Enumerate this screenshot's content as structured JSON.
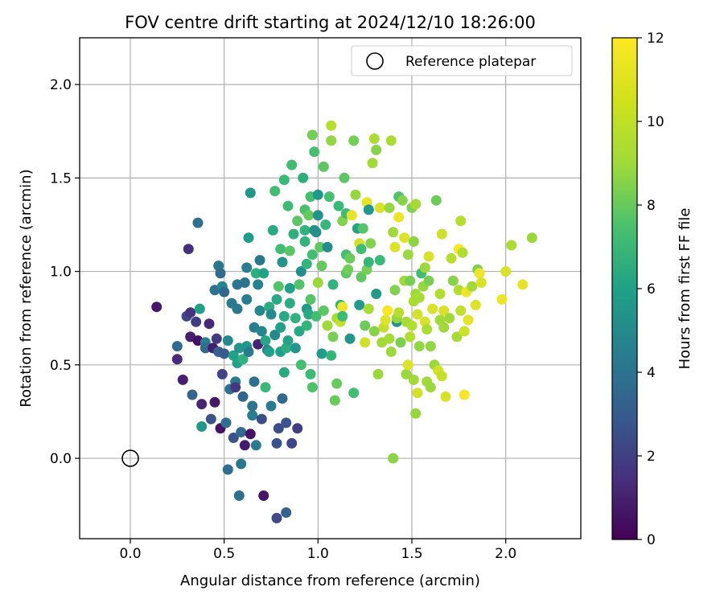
{
  "chart_data": {
    "type": "scatter",
    "title": "FOV centre drift starting at 2024/12/10 18:26:00",
    "xlabel": "Angular distance from reference (arcmin)",
    "ylabel": "Rotation from reference (arcmin)",
    "xlim": [
      -0.27,
      2.4
    ],
    "ylim": [
      -0.43,
      2.25
    ],
    "xticks": [
      "0.0",
      "0.5",
      "1.0",
      "1.5",
      "2.0"
    ],
    "yticks": [
      "0.0",
      "0.5",
      "1.0",
      "1.5",
      "2.0"
    ],
    "grid": true,
    "legend": {
      "placement": "top-right",
      "entries": [
        "Reference platepar"
      ]
    },
    "reference_point": {
      "x": 0.0,
      "y": 0.0
    },
    "colorbar": {
      "label": "Hours from first FF file",
      "range": [
        0,
        12
      ],
      "ticks": [
        "0",
        "2",
        "4",
        "6",
        "8",
        "10",
        "12"
      ],
      "colormap": "viridis"
    },
    "points": [
      [
        0.14,
        0.81,
        0.8
      ],
      [
        0.31,
        1.12,
        1.6
      ],
      [
        0.25,
        0.6,
        4.1
      ],
      [
        0.25,
        0.53,
        1.4
      ],
      [
        0.28,
        0.42,
        1.0
      ],
      [
        0.3,
        0.76,
        2.6
      ],
      [
        0.32,
        0.78,
        1.8
      ],
      [
        0.32,
        0.65,
        1.0
      ],
      [
        0.33,
        0.34,
        3.9
      ],
      [
        0.35,
        0.73,
        2.1
      ],
      [
        0.36,
        0.63,
        0.5
      ],
      [
        0.36,
        1.26,
        4.4
      ],
      [
        0.37,
        0.8,
        6.8
      ],
      [
        0.38,
        0.17,
        6.3
      ],
      [
        0.38,
        0.29,
        1.2
      ],
      [
        0.4,
        0.62,
        5.2
      ],
      [
        0.4,
        0.59,
        4.2
      ],
      [
        0.42,
        0.72,
        1.3
      ],
      [
        0.43,
        0.21,
        3.1
      ],
      [
        0.44,
        0.59,
        1.0
      ],
      [
        0.45,
        0.9,
        4.5
      ],
      [
        0.45,
        0.3,
        0.8
      ],
      [
        0.46,
        0.64,
        2.0
      ],
      [
        0.47,
        1.03,
        4.8
      ],
      [
        0.47,
        0.57,
        3.7
      ],
      [
        0.48,
        0.16,
        0.6
      ],
      [
        0.48,
        0.99,
        4.2
      ],
      [
        0.49,
        0.45,
        2.4
      ],
      [
        0.49,
        0.92,
        5.5
      ],
      [
        0.5,
        0.89,
        4.0
      ],
      [
        0.5,
        0.56,
        3.4
      ],
      [
        0.51,
        0.19,
        4.3
      ],
      [
        0.52,
        0.63,
        5.6
      ],
      [
        0.52,
        -0.06,
        4.3
      ],
      [
        0.53,
        0.37,
        4.5
      ],
      [
        0.54,
        0.83,
        4.9
      ],
      [
        0.55,
        0.55,
        6.8
      ],
      [
        0.55,
        0.11,
        3.0
      ],
      [
        0.56,
        0.41,
        5.0
      ],
      [
        0.56,
        0.38,
        2.0
      ],
      [
        0.57,
        0.8,
        4.8
      ],
      [
        0.57,
        0.51,
        6.9
      ],
      [
        0.57,
        0.93,
        4.7
      ],
      [
        0.58,
        -0.2,
        4.4
      ],
      [
        0.58,
        0.59,
        6.3
      ],
      [
        0.59,
        0.14,
        4.1
      ],
      [
        0.59,
        -0.03,
        4.8
      ],
      [
        0.6,
        0.33,
        3.9
      ],
      [
        0.6,
        0.53,
        7.7
      ],
      [
        0.61,
        0.07,
        0.9
      ],
      [
        0.61,
        0.94,
        4.6
      ],
      [
        0.62,
        0.85,
        5.1
      ],
      [
        0.62,
        1.02,
        5.1
      ],
      [
        0.62,
        0.6,
        6.4
      ],
      [
        0.63,
        1.18,
        6.6
      ],
      [
        0.63,
        0.57,
        5.0
      ],
      [
        0.64,
        1.42,
        6.4
      ],
      [
        0.64,
        0.13,
        0.7
      ],
      [
        0.65,
        0.23,
        5.1
      ],
      [
        0.65,
        0.28,
        4.7
      ],
      [
        0.66,
        0.41,
        4.4
      ],
      [
        0.66,
        0.7,
        5.1
      ],
      [
        0.67,
        0.99,
        7.6
      ],
      [
        0.67,
        0.07,
        5.0
      ],
      [
        0.68,
        0.93,
        5.4
      ],
      [
        0.68,
        0.61,
        1.1
      ],
      [
        0.69,
        1.06,
        4.8
      ],
      [
        0.69,
        0.79,
        5.6
      ],
      [
        0.7,
        0.21,
        2.8
      ],
      [
        0.7,
        0.68,
        5.5
      ],
      [
        0.71,
        0.99,
        6.9
      ],
      [
        0.71,
        -0.2,
        0.8
      ],
      [
        0.72,
        0.63,
        7.1
      ],
      [
        0.72,
        0.38,
        8.1
      ],
      [
        0.73,
        0.58,
        5.5
      ],
      [
        0.74,
        0.81,
        7.4
      ],
      [
        0.74,
        0.57,
        6.7
      ],
      [
        0.75,
        0.28,
        5.0
      ],
      [
        0.75,
        0.77,
        5.8
      ],
      [
        0.76,
        1.22,
        7.3
      ],
      [
        0.77,
        0.66,
        5.6
      ],
      [
        0.77,
        1.43,
        8.3
      ],
      [
        0.78,
        0.85,
        7.2
      ],
      [
        0.78,
        0.08,
        3.0
      ],
      [
        0.78,
        -0.32,
        2.6
      ],
      [
        0.79,
        0.92,
        8.7
      ],
      [
        0.79,
        0.16,
        2.8
      ],
      [
        0.8,
        1.12,
        8.3
      ],
      [
        0.8,
        0.7,
        6.7
      ],
      [
        0.8,
        0.57,
        6.8
      ],
      [
        0.81,
        1.05,
        6.2
      ],
      [
        0.81,
        0.32,
        4.1
      ],
      [
        0.82,
        0.76,
        7.2
      ],
      [
        0.82,
        0.46,
        7.3
      ],
      [
        0.82,
        1.49,
        8.1
      ],
      [
        0.83,
        -0.29,
        3.7
      ],
      [
        0.83,
        0.19,
        3.0
      ],
      [
        0.83,
        0.59,
        7.5
      ],
      [
        0.84,
        0.63,
        7.0
      ],
      [
        0.84,
        1.35,
        8.2
      ],
      [
        0.85,
        1.11,
        8.8
      ],
      [
        0.85,
        0.91,
        6.8
      ],
      [
        0.85,
        0.83,
        7.4
      ],
      [
        0.86,
        1.57,
        8.3
      ],
      [
        0.86,
        0.08,
        2.5
      ],
      [
        0.87,
        1.2,
        7.6
      ],
      [
        0.88,
        0.75,
        7.7
      ],
      [
        0.88,
        0.59,
        6.2
      ],
      [
        0.89,
        0.16,
        2.1
      ],
      [
        0.89,
        1.27,
        8.9
      ],
      [
        0.9,
        0.68,
        7.2
      ],
      [
        0.9,
        0.93,
        8.7
      ],
      [
        0.91,
        0.5,
        8.4
      ],
      [
        0.91,
        1.0,
        6.0
      ],
      [
        0.92,
        1.5,
        7.6
      ],
      [
        0.93,
        1.22,
        7.8
      ],
      [
        0.93,
        1.16,
        7.8
      ],
      [
        0.93,
        1.33,
        8.5
      ],
      [
        0.94,
        1.04,
        7.9
      ],
      [
        0.94,
        0.8,
        6.5
      ],
      [
        0.94,
        0.71,
        7.9
      ],
      [
        0.95,
        1.3,
        9.2
      ],
      [
        0.95,
        0.77,
        7.2
      ],
      [
        0.96,
        0.85,
        8.8
      ],
      [
        0.96,
        0.45,
        8.2
      ],
      [
        0.96,
        1.4,
        8.4
      ],
      [
        0.97,
        1.09,
        8.3
      ],
      [
        0.97,
        1.73,
        9.4
      ],
      [
        0.97,
        0.38,
        8.6
      ],
      [
        0.98,
        1.22,
        6.1
      ],
      [
        0.98,
        1.64,
        8.4
      ],
      [
        0.99,
        1.21,
        6.0
      ],
      [
        0.99,
        0.76,
        8.3
      ],
      [
        1.0,
        0.94,
        10.2
      ],
      [
        1.0,
        1.41,
        6.4
      ],
      [
        1.0,
        1.3,
        6.1
      ],
      [
        1.01,
        1.13,
        9.0
      ],
      [
        1.02,
        0.56,
        6.6
      ],
      [
        1.02,
        1.03,
        9.1
      ],
      [
        1.03,
        0.79,
        8.9
      ],
      [
        1.03,
        1.56,
        8.9
      ],
      [
        1.04,
        1.25,
        8.0
      ],
      [
        1.05,
        0.71,
        10.3
      ],
      [
        1.05,
        1.13,
        5.8
      ],
      [
        1.06,
        1.4,
        8.4
      ],
      [
        1.07,
        1.78,
        10.7
      ],
      [
        1.07,
        1.7,
        10.0
      ],
      [
        1.07,
        0.55,
        7.9
      ],
      [
        1.08,
        0.93,
        7.8
      ],
      [
        1.08,
        0.65,
        9.5
      ],
      [
        1.09,
        0.31,
        9.2
      ],
      [
        1.1,
        0.4,
        9.2
      ],
      [
        1.1,
        0.75,
        10.5
      ],
      [
        1.11,
        1.35,
        8.1
      ],
      [
        1.12,
        0.73,
        10.9
      ],
      [
        1.12,
        0.82,
        7.9
      ],
      [
        1.13,
        0.81,
        11.7
      ],
      [
        1.13,
        0.76,
        8.2
      ],
      [
        1.13,
        1.27,
        9.7
      ],
      [
        1.14,
        1.5,
        8.9
      ],
      [
        1.15,
        0.99,
        8.9
      ],
      [
        1.15,
        1.09,
        8.4
      ],
      [
        1.15,
        1.31,
        8.3
      ],
      [
        1.16,
        1.01,
        9.4
      ],
      [
        1.17,
        0.64,
        6.3
      ],
      [
        1.17,
        1.07,
        9.3
      ],
      [
        1.18,
        1.3,
        11.6
      ],
      [
        1.19,
        0.35,
        8.3
      ],
      [
        1.19,
        1.7,
        9.4
      ],
      [
        1.2,
        1.41,
        10.1
      ],
      [
        1.21,
        1.23,
        7.0
      ],
      [
        1.22,
        0.82,
        6.5
      ],
      [
        1.22,
        1.15,
        11.2
      ],
      [
        1.23,
        0.97,
        9.0
      ],
      [
        1.23,
        1.12,
        8.3
      ],
      [
        1.24,
        1.23,
        8.8
      ],
      [
        1.25,
        0.62,
        11.1
      ],
      [
        1.25,
        0.71,
        9.3
      ],
      [
        1.26,
        1.37,
        11.6
      ],
      [
        1.26,
        1.01,
        9.5
      ],
      [
        1.27,
        1.33,
        6.4
      ],
      [
        1.27,
        1.05,
        8.0
      ],
      [
        1.27,
        0.8,
        10.4
      ],
      [
        1.28,
        1.15,
        9.7
      ],
      [
        1.29,
        1.58,
        10.3
      ],
      [
        1.3,
        0.68,
        9.8
      ],
      [
        1.3,
        1.71,
        10.5
      ],
      [
        1.31,
        0.88,
        6.5
      ],
      [
        1.31,
        1.65,
        9.8
      ],
      [
        1.32,
        0.45,
        10.2
      ],
      [
        1.33,
        1.34,
        11.3
      ],
      [
        1.33,
        1.06,
        8.1
      ],
      [
        1.34,
        0.62,
        10.3
      ],
      [
        1.35,
        0.7,
        10.9
      ],
      [
        1.36,
        0.74,
        11.4
      ],
      [
        1.37,
        0.79,
        11.9
      ],
      [
        1.38,
        0.64,
        10.4
      ],
      [
        1.38,
        1.34,
        10.1
      ],
      [
        1.39,
        1.7,
        10.5
      ],
      [
        1.39,
        0.57,
        10.2
      ],
      [
        1.4,
        0.0,
        9.9
      ],
      [
        1.4,
        1.21,
        10.3
      ],
      [
        1.41,
        1.13,
        11.4
      ],
      [
        1.41,
        0.9,
        9.7
      ],
      [
        1.42,
        0.73,
        6.1
      ],
      [
        1.42,
        0.75,
        10.0
      ],
      [
        1.43,
        0.78,
        10.7
      ],
      [
        1.43,
        1.29,
        11.7
      ],
      [
        1.43,
        1.4,
        8.6
      ],
      [
        1.44,
        0.62,
        9.6
      ],
      [
        1.45,
        1.38,
        9.8
      ],
      [
        1.46,
        0.95,
        10.3
      ],
      [
        1.46,
        1.18,
        11.4
      ],
      [
        1.47,
        0.45,
        10.2
      ],
      [
        1.47,
        0.73,
        10.4
      ],
      [
        1.48,
        1.09,
        10.2
      ],
      [
        1.48,
        0.5,
        11.4
      ],
      [
        1.49,
        0.65,
        10.6
      ],
      [
        1.49,
        0.95,
        9.5
      ],
      [
        1.5,
        0.71,
        10.6
      ],
      [
        1.5,
        1.34,
        9.7
      ],
      [
        1.51,
        0.84,
        10.5
      ],
      [
        1.51,
        0.42,
        10.3
      ],
      [
        1.51,
        1.16,
        9.9
      ],
      [
        1.52,
        0.88,
        10.3
      ],
      [
        1.52,
        0.24,
        10.1
      ],
      [
        1.52,
        1.36,
        10.4
      ],
      [
        1.53,
        0.35,
        11.2
      ],
      [
        1.53,
        0.77,
        11.2
      ],
      [
        1.54,
        0.6,
        10.0
      ],
      [
        1.54,
        0.86,
        10.4
      ],
      [
        1.55,
        0.99,
        8.3
      ],
      [
        1.56,
        0.92,
        10.1
      ],
      [
        1.57,
        0.73,
        11.3
      ],
      [
        1.57,
        1.02,
        10.2
      ],
      [
        1.58,
        0.69,
        10.5
      ],
      [
        1.58,
        0.41,
        10.3
      ],
      [
        1.59,
        1.08,
        11.3
      ],
      [
        1.59,
        0.95,
        9.5
      ],
      [
        1.6,
        0.38,
        10.2
      ],
      [
        1.6,
        0.6,
        10.0
      ],
      [
        1.61,
        0.8,
        11.3
      ],
      [
        1.62,
        0.5,
        10.2
      ],
      [
        1.63,
        1.38,
        9.3
      ],
      [
        1.64,
        0.47,
        11.2
      ],
      [
        1.65,
        0.74,
        10.3
      ],
      [
        1.65,
        0.88,
        10.6
      ],
      [
        1.66,
        0.44,
        11.0
      ],
      [
        1.66,
        1.2,
        11.1
      ],
      [
        1.67,
        0.7,
        10.3
      ],
      [
        1.67,
        0.79,
        11.3
      ],
      [
        1.68,
        0.33,
        11.3
      ],
      [
        1.7,
        0.75,
        10.3
      ],
      [
        1.71,
        1.07,
        10.7
      ],
      [
        1.72,
        0.95,
        9.8
      ],
      [
        1.74,
        0.65,
        10.4
      ],
      [
        1.75,
        0.9,
        10.6
      ],
      [
        1.75,
        1.12,
        11.9
      ],
      [
        1.76,
        1.27,
        10.7
      ],
      [
        1.76,
        0.79,
        10.9
      ],
      [
        1.77,
        1.1,
        10.6
      ],
      [
        1.78,
        0.34,
        11.9
      ],
      [
        1.78,
        0.68,
        11.1
      ],
      [
        1.79,
        0.89,
        11.7
      ],
      [
        1.8,
        0.74,
        11.5
      ],
      [
        1.82,
        0.92,
        10.3
      ],
      [
        1.84,
        0.82,
        11.4
      ],
      [
        1.85,
        1.01,
        9.6
      ],
      [
        1.86,
        0.99,
        11.7
      ],
      [
        1.87,
        0.94,
        11.3
      ],
      [
        1.98,
        0.85,
        11.7
      ],
      [
        2.0,
        1.0,
        11.3
      ],
      [
        2.03,
        1.14,
        10.5
      ],
      [
        2.09,
        0.93,
        11.6
      ],
      [
        2.14,
        1.18,
        10.2
      ]
    ]
  }
}
